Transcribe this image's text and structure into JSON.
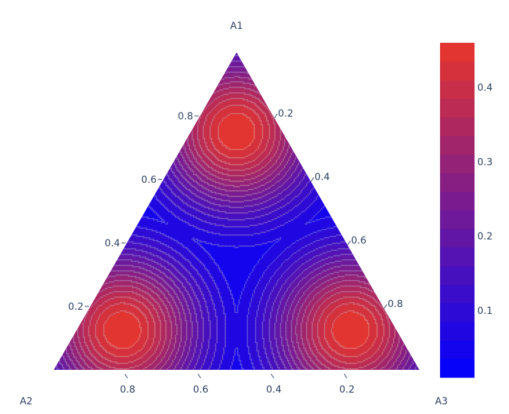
{
  "chart_data": {
    "type": "ternary-contour",
    "axes": {
      "a": {
        "title": "A1",
        "ticks": [
          0.2,
          0.4,
          0.6,
          0.8
        ]
      },
      "b": {
        "title": "A2",
        "ticks": [
          0.2,
          0.4,
          0.6,
          0.8
        ]
      },
      "c": {
        "title": "A3",
        "ticks": [
          0.2,
          0.4,
          0.6,
          0.8
        ]
      }
    },
    "tick_labels": {
      "a": [
        "0.2",
        "0.4",
        "0.6",
        "0.8"
      ],
      "b": [
        "0.2",
        "0.4",
        "0.6",
        "0.8"
      ],
      "c": [
        "0.2",
        "0.4",
        "0.6",
        "0.8"
      ]
    },
    "peaks": [
      {
        "A1": 0.75,
        "A2": 0.125,
        "A3": 0.125,
        "value": 0.46
      },
      {
        "A1": 0.125,
        "A2": 0.75,
        "A3": 0.125,
        "value": 0.46
      },
      {
        "A1": 0.125,
        "A2": 0.125,
        "A3": 0.75,
        "value": 0.46
      }
    ],
    "z_range": [
      0.01,
      0.46
    ],
    "contour_lines": "on",
    "colorscale": {
      "low": "#0000ff",
      "high": "#e8352a"
    },
    "colorbar": {
      "ticks": [
        0.1,
        0.2,
        0.3,
        0.4
      ],
      "tick_labels": [
        "0.1",
        "0.2",
        "0.3",
        "0.4"
      ],
      "placement": "right"
    }
  }
}
